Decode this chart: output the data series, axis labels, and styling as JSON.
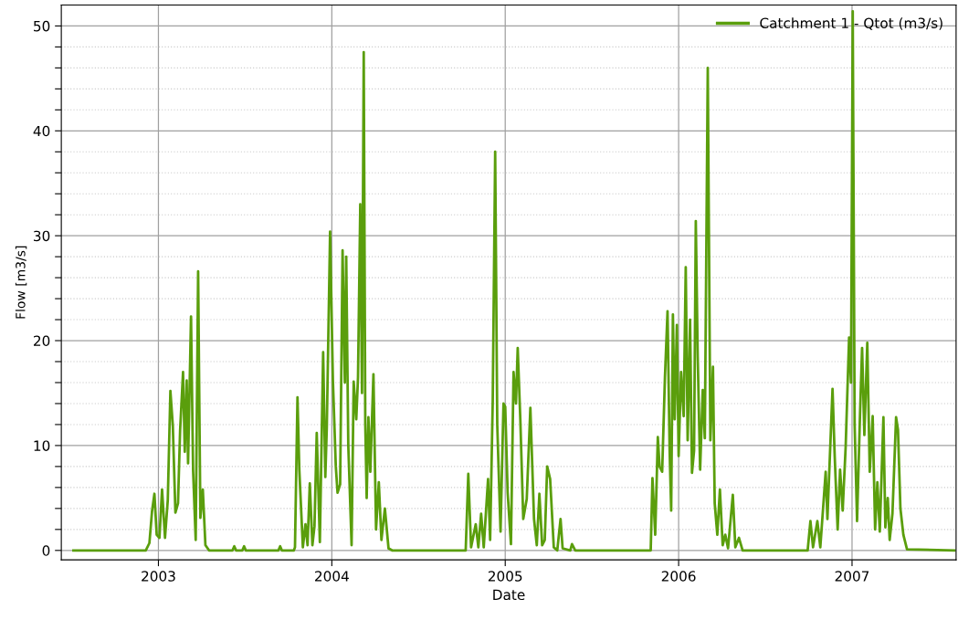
{
  "chart_data": {
    "type": "line",
    "xlabel": "Date",
    "ylabel": "Flow [m3/s]",
    "xlim": [
      2002.44,
      2007.6
    ],
    "xticks": [
      2003,
      2004,
      2005,
      2006,
      2007
    ],
    "ylim": [
      -0.9,
      52
    ],
    "yticks": [
      0,
      {
        "value": 2,
        "label": null
      },
      {
        "value": 4,
        "label": null
      },
      {
        "value": 6,
        "label": null
      },
      {
        "value": 8,
        "label": null
      },
      10,
      {
        "value": 12,
        "label": null
      },
      {
        "value": 14,
        "label": null
      },
      {
        "value": 16,
        "label": null
      },
      {
        "value": 18,
        "label": null
      },
      20,
      {
        "value": 22,
        "label": null
      },
      {
        "value": 24,
        "label": null
      },
      {
        "value": 26,
        "label": null
      },
      {
        "value": 28,
        "label": null
      },
      30,
      {
        "value": 32,
        "label": null
      },
      {
        "value": 34,
        "label": null
      },
      {
        "value": 36,
        "label": null
      },
      {
        "value": 38,
        "label": null
      },
      40,
      {
        "value": 42,
        "label": null
      },
      {
        "value": 44,
        "label": null
      },
      {
        "value": 46,
        "label": null
      },
      {
        "value": 48,
        "label": null
      },
      50
    ],
    "grid": true,
    "legend": "top right",
    "marker": "none",
    "line_style": "solid",
    "series": [
      {
        "name": "Catchment 1 - Qtot (m3/s)",
        "color": "#5a9e0c",
        "x": [
          2002.51,
          2002.927,
          2002.948,
          2002.963,
          2002.977,
          2002.99,
          2003.006,
          2003.021,
          2003.038,
          2003.054,
          2003.069,
          2003.083,
          2003.098,
          2003.113,
          2003.125,
          2003.142,
          2003.152,
          2003.163,
          2003.171,
          2003.188,
          2003.2,
          2003.215,
          2003.229,
          2003.242,
          2003.256,
          2003.271,
          2003.292,
          2003.427,
          2003.4375,
          2003.448,
          2003.484,
          2003.494,
          2003.504,
          2003.692,
          2003.702,
          2003.712,
          2003.781,
          2003.7875,
          2003.802,
          2003.8125,
          2003.833,
          2003.848,
          2003.86,
          2003.873,
          2003.888,
          2003.9,
          2003.913,
          2003.931,
          2003.95,
          2003.9625,
          2003.971,
          2003.99,
          2004.006,
          2004.023,
          2004.033,
          2004.048,
          2004.062,
          2004.075,
          2004.083,
          2004.095,
          2004.114,
          2004.126,
          2004.141,
          2004.151,
          2004.164,
          2004.174,
          2004.184,
          2004.193,
          2004.201,
          2004.211,
          2004.222,
          2004.24,
          2004.255,
          2004.271,
          2004.286,
          2004.306,
          2004.327,
          2004.348,
          2004.772,
          2004.787,
          2004.803,
          2004.83,
          2004.845,
          2004.861,
          2004.876,
          2004.901,
          2004.913,
          2004.928,
          2004.942,
          2004.954,
          2004.973,
          2004.99,
          2005.0,
          2005.014,
          2005.033,
          2005.048,
          2005.062,
          2005.072,
          2005.087,
          2005.104,
          2005.124,
          2005.145,
          2005.166,
          2005.182,
          2005.197,
          2005.213,
          2005.228,
          2005.242,
          2005.259,
          2005.28,
          2005.3,
          2005.319,
          2005.331,
          2005.375,
          2005.385,
          2005.404,
          2005.839,
          2005.849,
          2005.865,
          2005.88,
          2005.89,
          2005.905,
          2005.921,
          2005.936,
          2005.948,
          2005.957,
          2005.967,
          2005.977,
          2005.99,
          2006.0,
          2006.014,
          2006.029,
          2006.041,
          2006.052,
          2006.066,
          2006.077,
          2006.089,
          2006.099,
          2006.11,
          2006.124,
          2006.139,
          2006.151,
          2006.168,
          2006.183,
          2006.198,
          2006.208,
          2006.223,
          2006.238,
          2006.254,
          2006.269,
          2006.285,
          2006.3125,
          2006.327,
          2006.348,
          2006.369,
          2006.744,
          2006.76,
          2006.775,
          2006.8,
          2006.817,
          2006.848,
          2006.858,
          2006.8875,
          2006.9,
          2006.917,
          2006.931,
          2006.946,
          2006.963,
          2006.983,
          2006.994,
          2007.004,
          2007.015,
          2007.029,
          2007.046,
          2007.058,
          2007.071,
          2007.088,
          2007.102,
          2007.119,
          2007.133,
          2007.146,
          2007.16,
          2007.181,
          2007.192,
          2007.206,
          2007.217,
          2007.233,
          2007.254,
          2007.265,
          2007.279,
          2007.296,
          2007.317,
          2007.59
        ],
        "values": [
          0,
          0,
          0.7,
          3.7,
          5.4,
          1.5,
          1.2,
          5.8,
          1.2,
          4.8,
          15.2,
          11.9,
          3.6,
          4.5,
          11.4,
          17.0,
          9.4,
          16.2,
          8.3,
          22.3,
          7.6,
          1.0,
          26.6,
          3.1,
          5.8,
          0.5,
          0,
          0,
          0.4,
          0,
          0,
          0.4,
          0,
          0,
          0.4,
          0,
          0,
          0.3,
          14.6,
          7.7,
          0.3,
          2.5,
          0.5,
          6.4,
          0.5,
          2.3,
          11.2,
          0.8,
          18.9,
          7.0,
          11.7,
          30.4,
          16.3,
          8.0,
          5.5,
          6.3,
          28.6,
          16.0,
          28.0,
          10.0,
          0.5,
          16.1,
          12.5,
          16.5,
          33.0,
          15.0,
          47.5,
          12.0,
          5.0,
          12.7,
          7.5,
          16.8,
          2.0,
          6.5,
          1.0,
          4.0,
          0.2,
          0,
          0,
          7.3,
          0.3,
          2.5,
          0.3,
          3.5,
          0.3,
          6.8,
          1.0,
          14.3,
          38.0,
          12.0,
          1.8,
          14.0,
          13.7,
          5.5,
          0.6,
          17.0,
          14.0,
          19.3,
          12.5,
          3.0,
          4.9,
          13.6,
          3.0,
          0.5,
          5.4,
          0.5,
          1.0,
          8.0,
          6.8,
          0.3,
          0,
          3.0,
          0.2,
          0,
          0.6,
          0,
          0,
          6.9,
          1.5,
          10.8,
          8.0,
          7.5,
          16.5,
          22.8,
          9.6,
          3.8,
          22.5,
          12.5,
          21.5,
          9.0,
          17.0,
          12.8,
          27.0,
          10.5,
          22.0,
          7.4,
          9.5,
          31.4,
          18.5,
          7.7,
          15.3,
          10.7,
          46.0,
          10.5,
          17.5,
          4.5,
          1.5,
          5.8,
          0.5,
          1.5,
          0.2,
          5.3,
          0.3,
          1.2,
          0,
          0,
          2.8,
          0.3,
          2.8,
          0.3,
          7.5,
          3.0,
          15.4,
          9.0,
          2.0,
          7.7,
          3.8,
          9.8,
          20.3,
          16.0,
          51.4,
          12.0,
          2.8,
          13.0,
          19.3,
          11.0,
          19.8,
          7.5,
          12.8,
          2.0,
          6.5,
          1.8,
          12.7,
          2.2,
          5.0,
          1.0,
          3.5,
          12.7,
          11.5,
          4.0,
          1.5,
          0.1,
          0
        ]
      }
    ]
  }
}
